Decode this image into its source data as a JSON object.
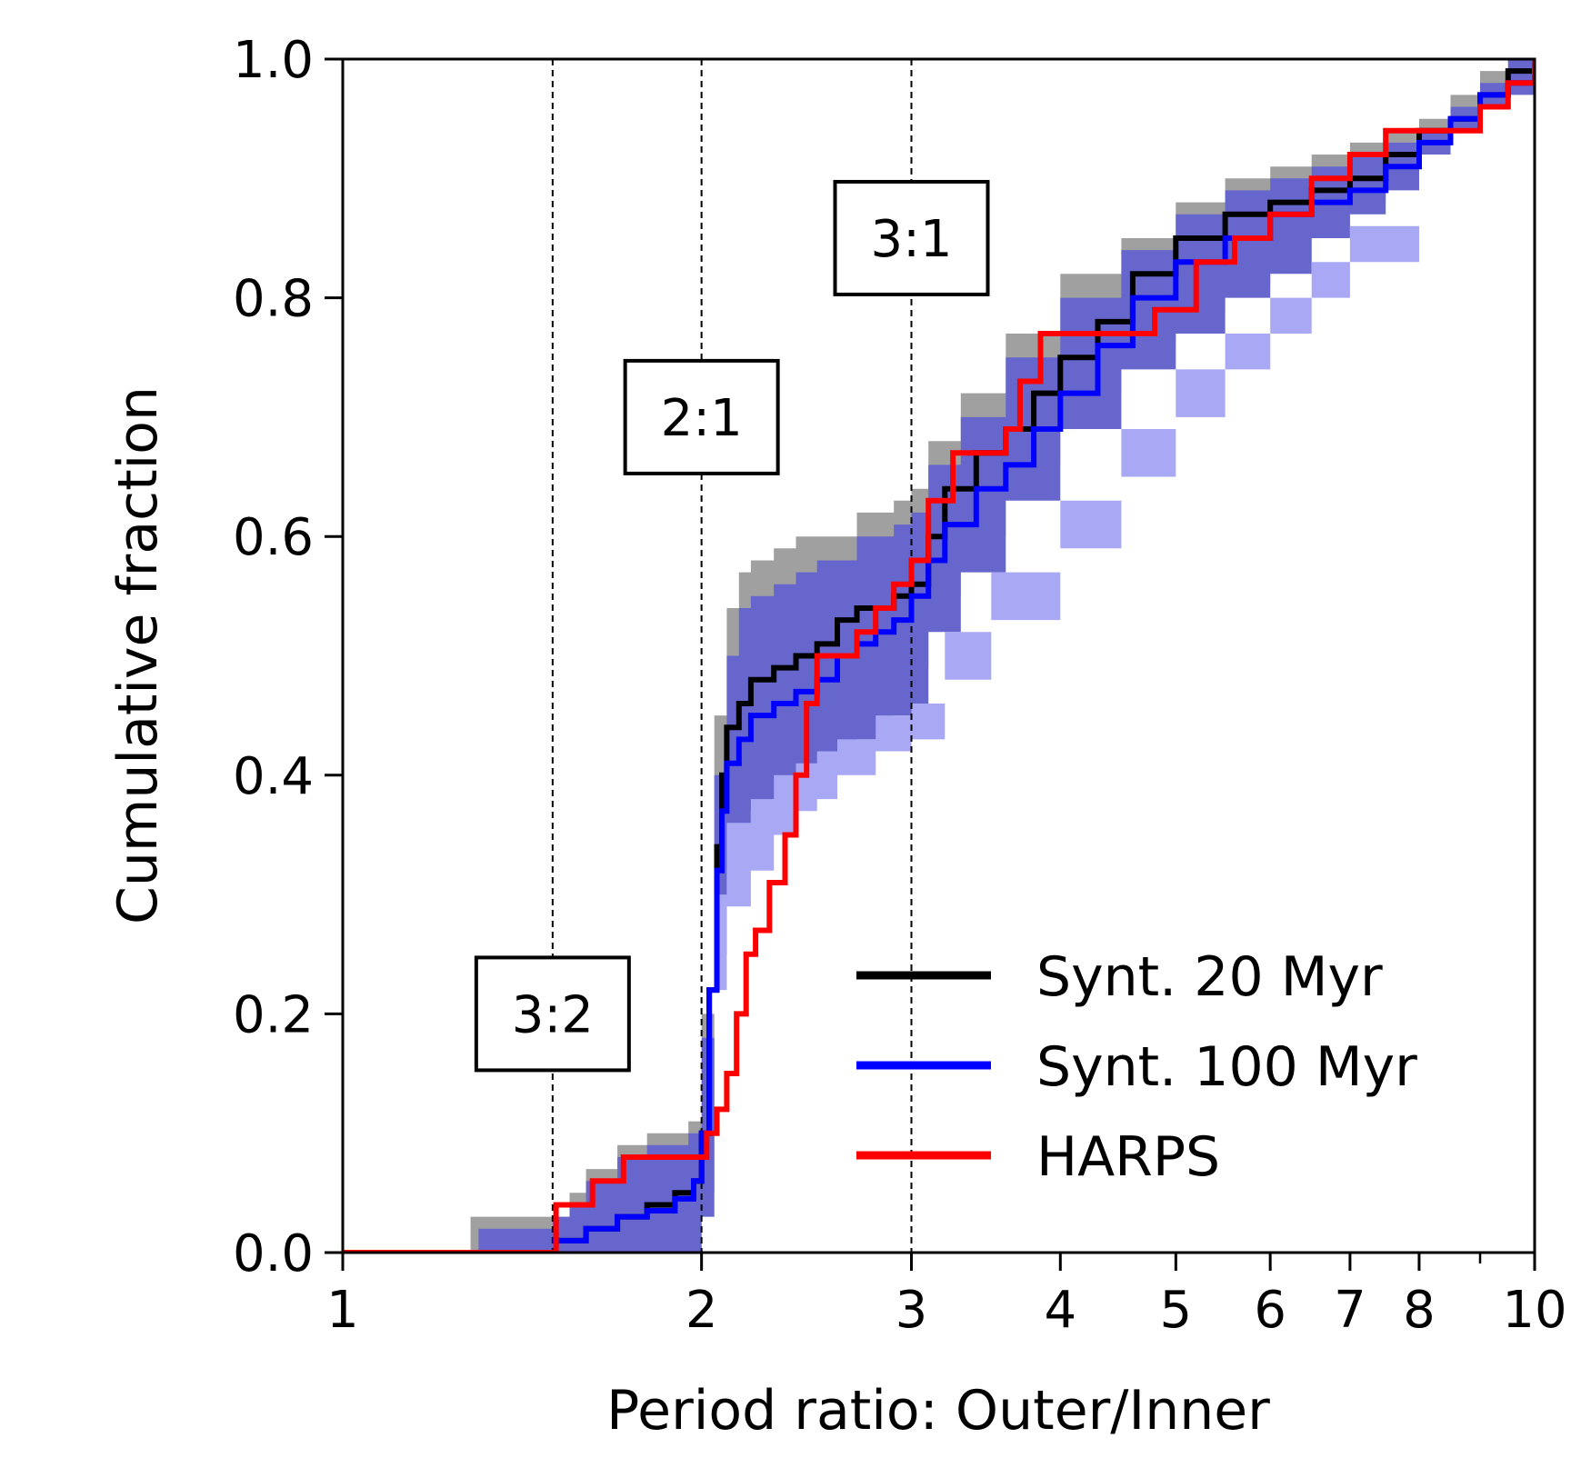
{
  "chart_data": {
    "type": "line",
    "title": "",
    "xlabel": "Period ratio: Outer/Inner",
    "ylabel": "Cumulative fraction",
    "xscale": "log",
    "xlim": [
      1,
      10
    ],
    "ylim": [
      0,
      1
    ],
    "x_ticks": [
      {
        "value": 1,
        "label": "1"
      },
      {
        "value": 2,
        "label": "2"
      },
      {
        "value": 3,
        "label": "3"
      },
      {
        "value": 4,
        "label": "4"
      },
      {
        "value": 5,
        "label": "5"
      },
      {
        "value": 6,
        "label": "6"
      },
      {
        "value": 7,
        "label": "7"
      },
      {
        "value": 8,
        "label": "8"
      },
      {
        "value": 10,
        "label": "10"
      }
    ],
    "x_minor_ticks": [
      9
    ],
    "y_ticks": [
      {
        "value": 0,
        "label": "0.0"
      },
      {
        "value": 0.2,
        "label": "0.2"
      },
      {
        "value": 0.4,
        "label": "0.4"
      },
      {
        "value": 0.6,
        "label": "0.6"
      },
      {
        "value": 0.8,
        "label": "0.8"
      },
      {
        "value": 1.0,
        "label": "1.0"
      }
    ],
    "grid": false,
    "legend_position": "lower-right",
    "resonances": [
      {
        "x": 1.5,
        "label": "3:2",
        "label_y": 0.2
      },
      {
        "x": 2.0,
        "label": "2:1",
        "label_y": 0.7
      },
      {
        "x": 3.0,
        "label": "3:1",
        "label_y": 0.85
      }
    ],
    "bands": [
      {
        "color": "#a0a0a0",
        "x": [
          1.28,
          1.5,
          1.55,
          1.6,
          1.7,
          1.8,
          1.95,
          2.0,
          2.05,
          2.1,
          2.15,
          2.2,
          2.3,
          2.4,
          2.5,
          2.7,
          2.9,
          3.0,
          3.1,
          3.3,
          3.6,
          4.0,
          4.5,
          5.0,
          5.5,
          6.0,
          6.5,
          7.0,
          7.5,
          8.0,
          8.5,
          9.0,
          9.5,
          10.0
        ],
        "upper": [
          0.03,
          0.03,
          0.05,
          0.07,
          0.09,
          0.1,
          0.11,
          0.2,
          0.45,
          0.54,
          0.57,
          0.58,
          0.59,
          0.6,
          0.6,
          0.62,
          0.63,
          0.64,
          0.68,
          0.72,
          0.77,
          0.82,
          0.85,
          0.88,
          0.9,
          0.91,
          0.92,
          0.93,
          0.94,
          0.95,
          0.97,
          0.99,
          1.0,
          1.0
        ],
        "lower": [
          0.0,
          0.0,
          0.0,
          0.0,
          0.0,
          0.0,
          0.0,
          0.05,
          0.3,
          0.37,
          0.4,
          0.42,
          0.43,
          0.44,
          0.45,
          0.47,
          0.48,
          0.49,
          0.55,
          0.6,
          0.66,
          0.72,
          0.76,
          0.79,
          0.81,
          0.83,
          0.86,
          0.88,
          0.9,
          0.93,
          0.95,
          0.97,
          0.98,
          0.99
        ]
      },
      {
        "color": "#6666cc",
        "x": [
          1.3,
          1.5,
          1.55,
          1.6,
          1.7,
          1.8,
          1.95,
          2.0,
          2.05,
          2.1,
          2.15,
          2.2,
          2.3,
          2.4,
          2.5,
          2.7,
          2.9,
          3.0,
          3.1,
          3.3,
          3.6,
          4.0,
          4.5,
          5.0,
          5.5,
          6.0,
          6.5,
          7.0,
          7.5,
          8.0,
          8.5,
          9.0,
          9.5,
          10.0
        ],
        "upper": [
          0.02,
          0.03,
          0.04,
          0.06,
          0.08,
          0.09,
          0.1,
          0.18,
          0.4,
          0.5,
          0.54,
          0.55,
          0.56,
          0.57,
          0.58,
          0.6,
          0.61,
          0.62,
          0.66,
          0.7,
          0.75,
          0.8,
          0.84,
          0.87,
          0.89,
          0.9,
          0.91,
          0.92,
          0.93,
          0.94,
          0.96,
          0.98,
          1.0,
          1.0
        ],
        "lower": [
          0.0,
          0.0,
          0.0,
          0.0,
          0.0,
          0.0,
          0.0,
          0.03,
          0.25,
          0.32,
          0.35,
          0.37,
          0.38,
          0.4,
          0.41,
          0.43,
          0.45,
          0.46,
          0.52,
          0.57,
          0.63,
          0.69,
          0.74,
          0.77,
          0.8,
          0.82,
          0.85,
          0.87,
          0.89,
          0.92,
          0.94,
          0.96,
          0.97,
          0.98
        ]
      },
      {
        "color": "#a8a8f5",
        "x": [
          2.05,
          2.1,
          2.2,
          2.3,
          2.4,
          2.5,
          2.6,
          2.8,
          3.0,
          3.2,
          3.5,
          4.0,
          4.5,
          5.0,
          5.5,
          6.0,
          6.5,
          7.0,
          8.0
        ],
        "upper": [
          0.3,
          0.36,
          0.38,
          0.4,
          0.41,
          0.42,
          0.43,
          0.45,
          0.46,
          0.52,
          0.57,
          0.63,
          0.69,
          0.74,
          0.77,
          0.8,
          0.83,
          0.86,
          0.9
        ],
        "lower": [
          0.22,
          0.29,
          0.32,
          0.35,
          0.37,
          0.38,
          0.4,
          0.42,
          0.43,
          0.48,
          0.53,
          0.59,
          0.65,
          0.7,
          0.74,
          0.77,
          0.8,
          0.83,
          0.88
        ]
      }
    ],
    "series": [
      {
        "name": "Synt. 20 Myr",
        "color": "#000000",
        "x": [
          1.5,
          1.6,
          1.7,
          1.8,
          1.9,
          1.97,
          2.0,
          2.03,
          2.06,
          2.08,
          2.1,
          2.15,
          2.2,
          2.3,
          2.4,
          2.5,
          2.6,
          2.7,
          2.8,
          2.9,
          3.0,
          3.1,
          3.2,
          3.4,
          3.6,
          3.8,
          4.0,
          4.3,
          4.6,
          5.0,
          5.5,
          6.0,
          6.5,
          7.0,
          7.5,
          8.0,
          8.5,
          9.0,
          9.5,
          10.0
        ],
        "y": [
          0.01,
          0.02,
          0.03,
          0.04,
          0.05,
          0.06,
          0.1,
          0.22,
          0.34,
          0.4,
          0.44,
          0.46,
          0.48,
          0.49,
          0.5,
          0.51,
          0.53,
          0.54,
          0.54,
          0.55,
          0.56,
          0.6,
          0.64,
          0.67,
          0.69,
          0.72,
          0.75,
          0.78,
          0.82,
          0.85,
          0.87,
          0.88,
          0.89,
          0.9,
          0.92,
          0.94,
          0.95,
          0.97,
          0.99,
          1.0
        ]
      },
      {
        "name": "Synt. 100 Myr",
        "color": "#0000ff",
        "x": [
          1.5,
          1.6,
          1.7,
          1.8,
          1.9,
          1.97,
          2.0,
          2.03,
          2.06,
          2.08,
          2.1,
          2.15,
          2.2,
          2.3,
          2.4,
          2.5,
          2.6,
          2.7,
          2.8,
          2.9,
          3.0,
          3.1,
          3.2,
          3.4,
          3.6,
          3.8,
          4.0,
          4.3,
          4.6,
          5.0,
          5.5,
          6.0,
          6.5,
          7.0,
          7.5,
          8.0,
          8.5,
          9.0,
          9.5,
          10.0
        ],
        "y": [
          0.01,
          0.02,
          0.03,
          0.035,
          0.045,
          0.06,
          0.1,
          0.22,
          0.32,
          0.37,
          0.41,
          0.43,
          0.45,
          0.46,
          0.47,
          0.48,
          0.5,
          0.51,
          0.52,
          0.53,
          0.55,
          0.58,
          0.61,
          0.64,
          0.66,
          0.69,
          0.72,
          0.76,
          0.8,
          0.83,
          0.85,
          0.87,
          0.88,
          0.89,
          0.91,
          0.93,
          0.95,
          0.97,
          0.98,
          0.99
        ]
      },
      {
        "name": "HARPS",
        "color": "#ff0000",
        "x": [
          1.0,
          1.49,
          1.51,
          1.62,
          1.72,
          1.98,
          2.02,
          2.06,
          2.1,
          2.14,
          2.18,
          2.22,
          2.28,
          2.35,
          2.4,
          2.45,
          2.5,
          2.55,
          2.6,
          2.7,
          2.8,
          2.9,
          3.0,
          3.1,
          3.25,
          3.45,
          3.6,
          3.7,
          3.85,
          4.2,
          4.4,
          4.8,
          5.2,
          5.6,
          6.0,
          6.5,
          7.0,
          7.5,
          8.0,
          8.5,
          9.0,
          9.5,
          10.0
        ],
        "y": [
          0.0,
          0.0,
          0.04,
          0.06,
          0.08,
          0.08,
          0.1,
          0.12,
          0.15,
          0.2,
          0.25,
          0.27,
          0.31,
          0.35,
          0.4,
          0.46,
          0.5,
          0.5,
          0.5,
          0.52,
          0.54,
          0.56,
          0.58,
          0.63,
          0.67,
          0.67,
          0.69,
          0.73,
          0.77,
          0.77,
          0.77,
          0.79,
          0.83,
          0.85,
          0.87,
          0.9,
          0.92,
          0.94,
          0.94,
          0.94,
          0.96,
          0.98,
          1.0
        ]
      }
    ]
  }
}
